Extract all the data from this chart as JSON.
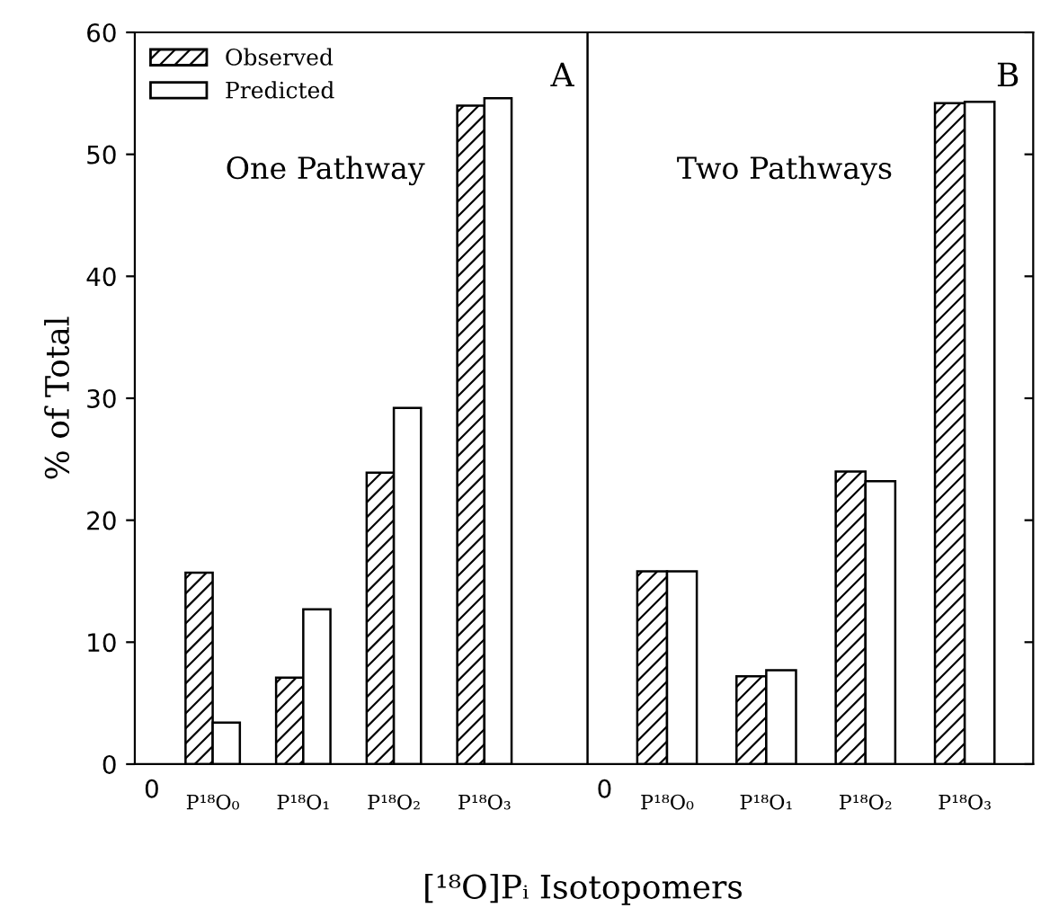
{
  "chart_data": [
    {
      "type": "bar",
      "title": "One Pathway",
      "xlabel": "[¹⁸O]Pᵢ Isotopomers",
      "ylabel": "% of Total",
      "annotations": [
        "A",
        "0"
      ],
      "categories": [
        "P¹⁸O₀",
        "P¹⁸O₁",
        "P¹⁸O₂",
        "P¹⁸O₃"
      ],
      "series": [
        {
          "name": "Observed",
          "color": "#000000",
          "values": [
            15.7,
            7.1,
            23.9,
            54.0
          ]
        },
        {
          "name": "Predicted",
          "color": "#ffffff",
          "values": [
            3.4,
            12.7,
            29.2,
            54.6
          ]
        }
      ],
      "ylim": [
        0,
        60
      ],
      "yticks": [
        0,
        10,
        20,
        30,
        40,
        50,
        60
      ],
      "legend": "top left",
      "grid": false
    },
    {
      "type": "bar",
      "title": "Two Pathways",
      "annotations": [
        "B",
        "0"
      ],
      "categories": [
        "P¹⁸O₀",
        "P¹⁸O₁",
        "P¹⁸O₂",
        "P¹⁸O₃"
      ],
      "series": [
        {
          "color": "#000000",
          "values": [
            15.8,
            7.2,
            24.0,
            54.2
          ]
        },
        {
          "color": "#ffffff",
          "values": [
            15.8,
            7.7,
            23.2,
            54.3
          ]
        }
      ],
      "ylim": [
        0,
        60
      ],
      "yticks": [
        0,
        10,
        20,
        30,
        40,
        50,
        60
      ],
      "tick_labels": "x",
      "grid": false
    }
  ]
}
